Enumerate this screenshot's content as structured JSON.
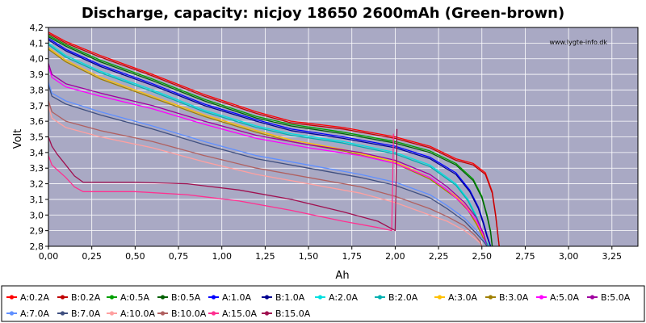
{
  "chart_data": {
    "type": "line",
    "title": "Discharge, capacity: nicjoy 18650 2600mAh (Green-brown)",
    "watermark": "www.lygte-info.dk",
    "xlabel": "Ah",
    "ylabel": "Volt",
    "xlim": [
      0,
      3.4
    ],
    "ylim": [
      2.8,
      4.2
    ],
    "xticks": [
      "0,00",
      "0,25",
      "0,50",
      "0,75",
      "1,00",
      "1,25",
      "1,50",
      "1,75",
      "2,00",
      "2,25",
      "2,50",
      "2,75",
      "3,00",
      "3,25"
    ],
    "yticks": [
      "2,8",
      "2,9",
      "3,0",
      "3,1",
      "3,2",
      "3,3",
      "3,4",
      "3,5",
      "3,6",
      "3,7",
      "3,8",
      "3,9",
      "4,0",
      "4,1",
      "4,2"
    ],
    "grid": true,
    "plot_background": "#a9a9c4",
    "legend_position": "bottom",
    "series": [
      {
        "name": "A:0.2A",
        "color": "#ff0000",
        "x": [
          0,
          0.1,
          0.3,
          0.6,
          0.9,
          1.2,
          1.4,
          1.7,
          2.0,
          2.2,
          2.35,
          2.45,
          2.52,
          2.56,
          2.58,
          2.6
        ],
        "y": [
          4.17,
          4.11,
          4.02,
          3.9,
          3.77,
          3.66,
          3.6,
          3.56,
          3.5,
          3.44,
          3.36,
          3.33,
          3.27,
          3.15,
          3.0,
          2.8
        ]
      },
      {
        "name": "B:0.2A",
        "color": "#c00000",
        "x": [
          0,
          0.1,
          0.3,
          0.6,
          0.9,
          1.2,
          1.4,
          1.7,
          2.0,
          2.2,
          2.35,
          2.45,
          2.52,
          2.56,
          2.58,
          2.6
        ],
        "y": [
          4.16,
          4.1,
          4.01,
          3.89,
          3.76,
          3.65,
          3.59,
          3.55,
          3.49,
          3.43,
          3.35,
          3.32,
          3.26,
          3.14,
          2.99,
          2.8
        ]
      },
      {
        "name": "A:0.5A",
        "color": "#00a000",
        "x": [
          0,
          0.1,
          0.3,
          0.6,
          0.9,
          1.2,
          1.4,
          1.7,
          2.0,
          2.2,
          2.35,
          2.45,
          2.5,
          2.53,
          2.55,
          2.56
        ],
        "y": [
          4.15,
          4.09,
          3.99,
          3.87,
          3.74,
          3.63,
          3.58,
          3.53,
          3.47,
          3.41,
          3.33,
          3.23,
          3.12,
          3.0,
          2.9,
          2.8
        ]
      },
      {
        "name": "B:0.5A",
        "color": "#006000",
        "x": [
          0,
          0.1,
          0.3,
          0.6,
          0.9,
          1.2,
          1.4,
          1.7,
          2.0,
          2.2,
          2.35,
          2.45,
          2.5,
          2.53,
          2.55,
          2.56
        ],
        "y": [
          4.14,
          4.08,
          3.98,
          3.86,
          3.73,
          3.62,
          3.57,
          3.52,
          3.46,
          3.4,
          3.32,
          3.22,
          3.11,
          2.99,
          2.89,
          2.8
        ]
      },
      {
        "name": "A:1.0A",
        "color": "#0000ff",
        "x": [
          0,
          0.1,
          0.3,
          0.6,
          0.9,
          1.2,
          1.4,
          1.7,
          2.0,
          2.2,
          2.35,
          2.43,
          2.48,
          2.51,
          2.53,
          2.55
        ],
        "y": [
          4.13,
          4.06,
          3.96,
          3.84,
          3.71,
          3.61,
          3.55,
          3.5,
          3.44,
          3.37,
          3.27,
          3.16,
          3.05,
          2.95,
          2.87,
          2.8
        ]
      },
      {
        "name": "B:1.0A",
        "color": "#000090",
        "x": [
          0,
          0.1,
          0.3,
          0.6,
          0.9,
          1.2,
          1.4,
          1.7,
          2.0,
          2.2,
          2.35,
          2.43,
          2.48,
          2.51,
          2.53,
          2.55
        ],
        "y": [
          4.12,
          4.05,
          3.95,
          3.83,
          3.7,
          3.6,
          3.54,
          3.49,
          3.43,
          3.36,
          3.26,
          3.15,
          3.04,
          2.94,
          2.86,
          2.8
        ]
      },
      {
        "name": "A:2.0A",
        "color": "#00e0e0",
        "x": [
          0,
          0.1,
          0.3,
          0.6,
          0.9,
          1.2,
          1.4,
          1.7,
          2.0,
          2.2,
          2.35,
          2.42,
          2.47,
          2.5,
          2.52,
          2.54
        ],
        "y": [
          4.1,
          4.02,
          3.92,
          3.8,
          3.67,
          3.57,
          3.52,
          3.47,
          3.4,
          3.32,
          3.2,
          3.1,
          2.99,
          2.9,
          2.84,
          2.8
        ]
      },
      {
        "name": "B:2.0A",
        "color": "#00b0b0",
        "x": [
          0,
          0.1,
          0.3,
          0.6,
          0.9,
          1.2,
          1.4,
          1.7,
          2.0,
          2.2,
          2.35,
          2.42,
          2.47,
          2.5,
          2.52,
          2.54
        ],
        "y": [
          4.09,
          4.01,
          3.91,
          3.79,
          3.66,
          3.56,
          3.51,
          3.46,
          3.39,
          3.31,
          3.19,
          3.09,
          2.98,
          2.89,
          2.83,
          2.8
        ]
      },
      {
        "name": "A:3.0A",
        "color": "#ffc000",
        "x": [
          0,
          0.1,
          0.3,
          0.6,
          0.9,
          1.2,
          1.4,
          1.7,
          2.0,
          2.2,
          2.35,
          2.42,
          2.47,
          2.5,
          2.52,
          2.53
        ],
        "y": [
          4.07,
          3.99,
          3.88,
          3.76,
          3.64,
          3.54,
          3.48,
          3.42,
          3.34,
          3.24,
          3.12,
          3.04,
          2.95,
          2.88,
          2.83,
          2.8
        ]
      },
      {
        "name": "B:3.0A",
        "color": "#a08000",
        "x": [
          0,
          0.1,
          0.3,
          0.6,
          0.9,
          1.2,
          1.4,
          1.7,
          2.0,
          2.2,
          2.35,
          2.42,
          2.47,
          2.5,
          2.52,
          2.53
        ],
        "y": [
          4.06,
          3.98,
          3.87,
          3.75,
          3.63,
          3.53,
          3.47,
          3.41,
          3.33,
          3.23,
          3.11,
          3.03,
          2.94,
          2.87,
          2.82,
          2.8
        ]
      },
      {
        "name": "A:5.0A",
        "color": "#ff00ff",
        "x": [
          0,
          0.02,
          0.1,
          0.3,
          0.6,
          0.9,
          1.2,
          1.5,
          1.8,
          2.0,
          2.2,
          2.3,
          2.4,
          2.47,
          2.51,
          2.53
        ],
        "y": [
          3.95,
          3.88,
          3.82,
          3.76,
          3.68,
          3.58,
          3.49,
          3.43,
          3.38,
          3.33,
          3.24,
          3.16,
          3.06,
          2.96,
          2.87,
          2.8
        ]
      },
      {
        "name": "B:5.0A",
        "color": "#a000a0",
        "x": [
          0,
          0.02,
          0.1,
          0.3,
          0.6,
          0.9,
          1.2,
          1.5,
          1.8,
          2.0,
          2.2,
          2.3,
          2.4,
          2.47,
          2.51,
          2.53
        ],
        "y": [
          3.97,
          3.9,
          3.84,
          3.78,
          3.7,
          3.6,
          3.51,
          3.45,
          3.4,
          3.35,
          3.26,
          3.18,
          3.08,
          2.98,
          2.88,
          2.8
        ]
      },
      {
        "name": "A:7.0A",
        "color": "#6090ff",
        "x": [
          0,
          0.02,
          0.1,
          0.3,
          0.6,
          0.9,
          1.2,
          1.5,
          1.8,
          2.0,
          2.2,
          2.3,
          2.4,
          2.47,
          2.51,
          2.53
        ],
        "y": [
          3.85,
          3.78,
          3.73,
          3.66,
          3.57,
          3.47,
          3.38,
          3.32,
          3.26,
          3.21,
          3.13,
          3.06,
          2.98,
          2.9,
          2.84,
          2.8
        ]
      },
      {
        "name": "B:7.0A",
        "color": "#405080",
        "x": [
          0,
          0.02,
          0.1,
          0.3,
          0.6,
          0.9,
          1.2,
          1.5,
          1.8,
          2.0,
          2.2,
          2.3,
          2.4,
          2.47,
          2.51,
          2.53
        ],
        "y": [
          3.83,
          3.76,
          3.71,
          3.64,
          3.55,
          3.45,
          3.36,
          3.3,
          3.24,
          3.19,
          3.11,
          3.04,
          2.96,
          2.88,
          2.83,
          2.8
        ]
      },
      {
        "name": "A:10.0A",
        "color": "#ffa0a0",
        "x": [
          0,
          0.02,
          0.1,
          0.3,
          0.6,
          0.9,
          1.2,
          1.5,
          1.8,
          2.0,
          2.2,
          2.3,
          2.4,
          2.46,
          2.49,
          2.5
        ],
        "y": [
          3.7,
          3.62,
          3.56,
          3.5,
          3.43,
          3.34,
          3.26,
          3.2,
          3.14,
          3.08,
          3.0,
          2.96,
          2.9,
          2.85,
          2.82,
          2.8
        ]
      },
      {
        "name": "B:10.0A",
        "color": "#b06060",
        "x": [
          0,
          0.02,
          0.1,
          0.3,
          0.6,
          0.9,
          1.2,
          1.5,
          1.8,
          2.0,
          2.2,
          2.3,
          2.4,
          2.46,
          2.49,
          2.5
        ],
        "y": [
          3.73,
          3.66,
          3.6,
          3.54,
          3.47,
          3.38,
          3.3,
          3.24,
          3.18,
          3.12,
          3.04,
          2.99,
          2.93,
          2.87,
          2.83,
          2.8
        ]
      },
      {
        "name": "A:15.0A",
        "color": "#ff3090",
        "x": [
          0,
          0.02,
          0.05,
          0.1,
          0.15,
          0.2,
          0.3,
          0.5,
          0.8,
          1.1,
          1.4,
          1.7,
          1.9,
          1.98,
          1.99
        ],
        "y": [
          3.38,
          3.32,
          3.29,
          3.24,
          3.18,
          3.15,
          3.15,
          3.15,
          3.13,
          3.09,
          3.03,
          2.96,
          2.92,
          2.9,
          3.52
        ]
      },
      {
        "name": "B:15.0A",
        "color": "#a01050",
        "x": [
          0,
          0.02,
          0.05,
          0.1,
          0.15,
          0.2,
          0.3,
          0.5,
          0.8,
          1.1,
          1.4,
          1.7,
          1.9,
          2.0,
          2.01
        ],
        "y": [
          3.5,
          3.44,
          3.39,
          3.32,
          3.25,
          3.21,
          3.21,
          3.21,
          3.2,
          3.16,
          3.1,
          3.02,
          2.96,
          2.9,
          3.55
        ]
      }
    ]
  }
}
